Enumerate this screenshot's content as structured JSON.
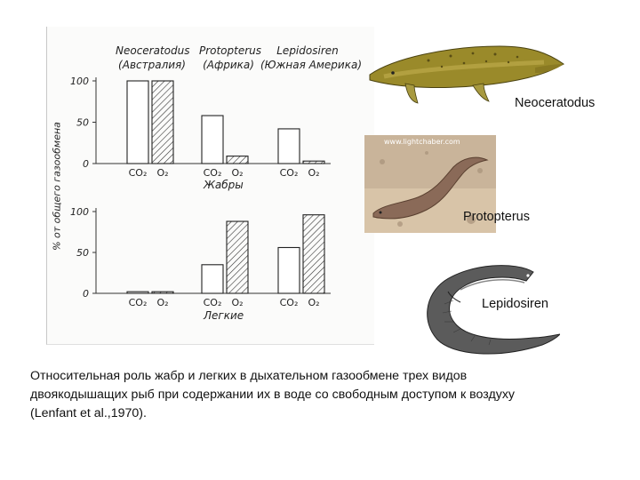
{
  "chart_data": [
    {
      "type": "bar",
      "title": "Жабры",
      "ylabel": "% от общего газообмена",
      "ylim": [
        0,
        100
      ],
      "yticks": [
        0,
        50,
        100
      ],
      "groups": [
        "Neoceratodus",
        "Protopterus",
        "Lepidosiren"
      ],
      "series": [
        {
          "name": "CO2",
          "values": [
            100,
            58,
            42
          ]
        },
        {
          "name": "O2",
          "values": [
            100,
            9,
            3
          ]
        }
      ]
    },
    {
      "type": "bar",
      "title": "Легкие",
      "ylabel": "% от общего газообмена",
      "ylim": [
        0,
        100
      ],
      "yticks": [
        0,
        50,
        100
      ],
      "groups": [
        "Neoceratodus",
        "Protopterus",
        "Lepidosiren"
      ],
      "series": [
        {
          "name": "CO2",
          "values": [
            2,
            35,
            56
          ]
        },
        {
          "name": "O2",
          "values": [
            2,
            88,
            96
          ]
        }
      ]
    }
  ],
  "species": [
    {
      "name": "Neoceratodus",
      "region": "(Австралия)"
    },
    {
      "name": "Protopterus",
      "region": "(Африка)"
    },
    {
      "name": "Lepidosiren",
      "region": "(Южная Америка)"
    }
  ],
  "gas_labels": {
    "co2": "CO₂",
    "o2": "O₂"
  },
  "ylabel": "% от общего газообмена",
  "fish_labels": {
    "neoceratodus": "Neoceratodus",
    "protopterus": "Protopterus",
    "lepidosiren": "Lepidosiren"
  },
  "photo_watermark": "www.lightchaber.com",
  "caption": "Относительная роль жабр и легких в дыхательном газообмене трех видов двоякодышащих рыб при содержании их в воде со свободным доступом к воздуху (Lenfant et al.,1970).",
  "colors": {
    "neoceratodus_body": "#9a8a2a",
    "protopterus_body": "#8a6a58",
    "lepidosiren_body": "#555555",
    "photo_bg": "#c9b49a"
  }
}
